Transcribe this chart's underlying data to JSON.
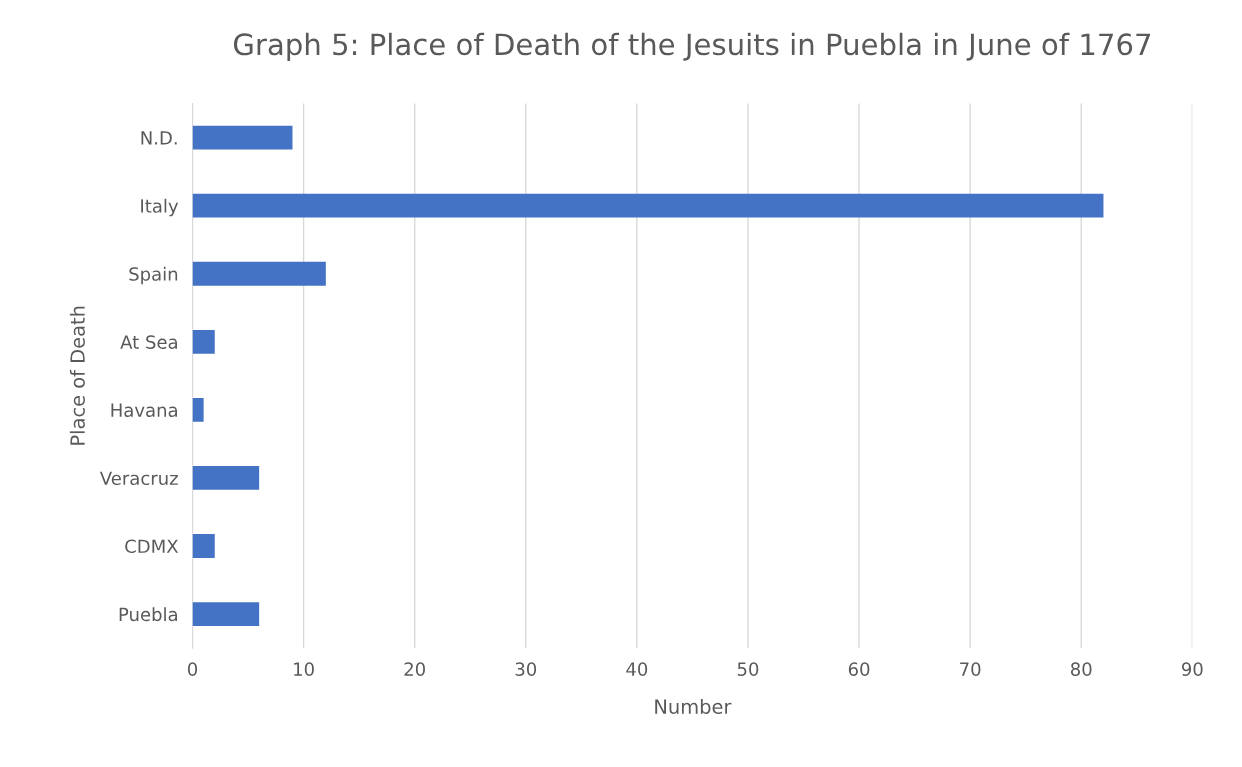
{
  "chart_data": {
    "type": "bar",
    "orientation": "horizontal",
    "title": "Graph 5: Place of Death of the Jesuits in Puebla in June of 1767",
    "xlabel": "Number",
    "ylabel": "Place of Death",
    "categories": [
      "N.D.",
      "Italy",
      "Spain",
      "At Sea",
      "Havana",
      "Veracruz",
      "CDMX",
      "Puebla"
    ],
    "values": [
      9,
      82,
      12,
      2,
      1,
      6,
      2,
      6
    ],
    "color": "#4472c4",
    "xlim": [
      0,
      90
    ],
    "xticks": [
      0,
      10,
      20,
      30,
      40,
      50,
      60,
      70,
      80,
      90
    ],
    "grid": "x",
    "legend": false
  }
}
